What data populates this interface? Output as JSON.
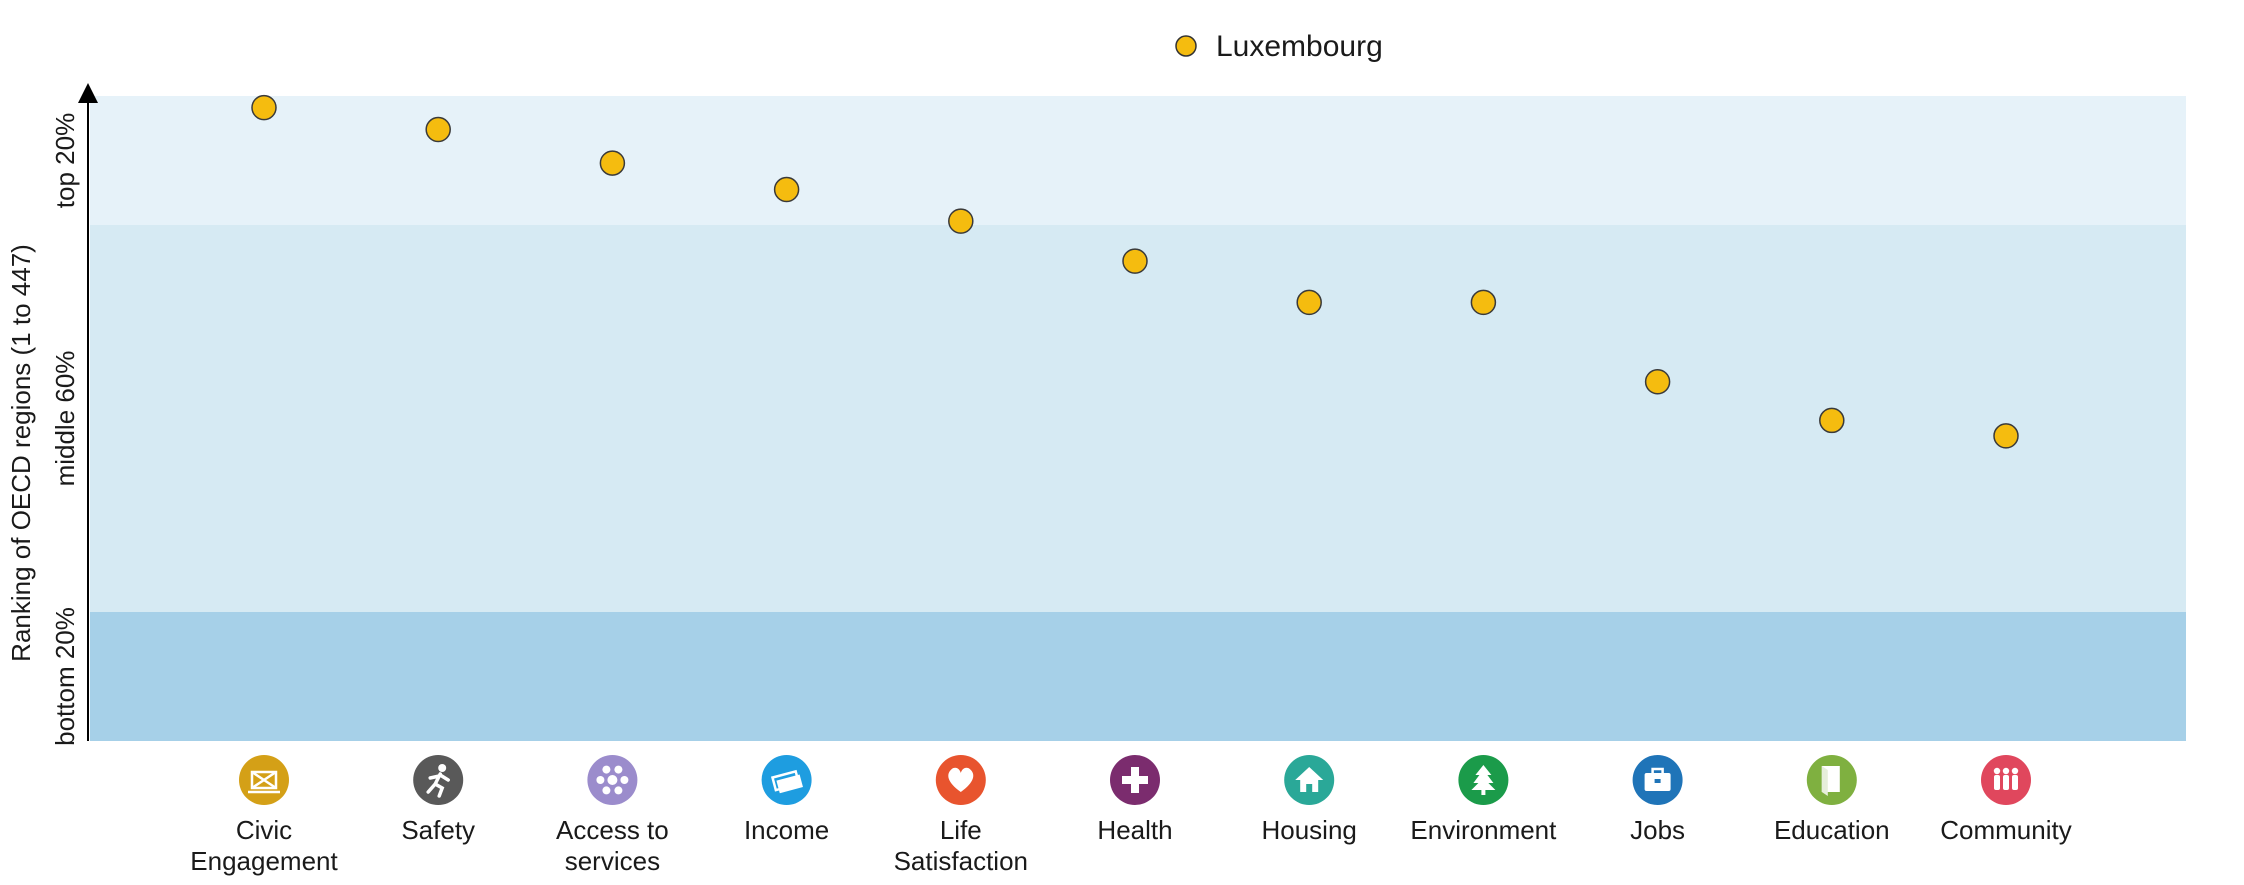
{
  "chart_data": {
    "type": "scatter",
    "ylabel": "Ranking of OECD regions (1 to 447)",
    "legend": {
      "placement": "top-center",
      "entries": [
        "Luxembourg"
      ]
    },
    "ylim": [
      0,
      100
    ],
    "bands": [
      {
        "label": "bottom 20%",
        "from": 0,
        "to": 20,
        "color": "#a6d0e8"
      },
      {
        "label": "middle 60%",
        "from": 20,
        "to": 80,
        "color": "#d6eaf3"
      },
      {
        "label": "top 20%",
        "from": 80,
        "to": 100,
        "color": "#e6f2f9"
      }
    ],
    "categories": [
      {
        "lines": [
          "Civic",
          "Engagement"
        ],
        "icon": "ballot-icon",
        "color": "#d4a017"
      },
      {
        "lines": [
          "Safety"
        ],
        "icon": "running-person-icon",
        "color": "#595959"
      },
      {
        "lines": [
          "Access to",
          "services"
        ],
        "icon": "services-network-icon",
        "color": "#9b8ccc"
      },
      {
        "lines": [
          "Income"
        ],
        "icon": "money-icon",
        "color": "#1e9de0"
      },
      {
        "lines": [
          "Life",
          "Satisfaction"
        ],
        "icon": "heart-icon",
        "color": "#e8542e"
      },
      {
        "lines": [
          "Health"
        ],
        "icon": "medical-cross-icon",
        "color": "#7b2c6e"
      },
      {
        "lines": [
          "Housing"
        ],
        "icon": "house-icon",
        "color": "#2aa898"
      },
      {
        "lines": [
          "Environment"
        ],
        "icon": "tree-icon",
        "color": "#1b9b4a"
      },
      {
        "lines": [
          "Jobs"
        ],
        "icon": "briefcase-icon",
        "color": "#1f74b8"
      },
      {
        "lines": [
          "Education"
        ],
        "icon": "book-icon",
        "color": "#7fb040"
      },
      {
        "lines": [
          "Community"
        ],
        "icon": "people-icon",
        "color": "#e0475d"
      }
    ],
    "series": [
      {
        "name": "Luxembourg",
        "color": "#f5bc0f",
        "values": [
          98.2,
          94.8,
          89.6,
          85.5,
          80.6,
          74.4,
          68.0,
          68.0,
          55.7,
          49.7,
          47.3
        ]
      }
    ]
  }
}
